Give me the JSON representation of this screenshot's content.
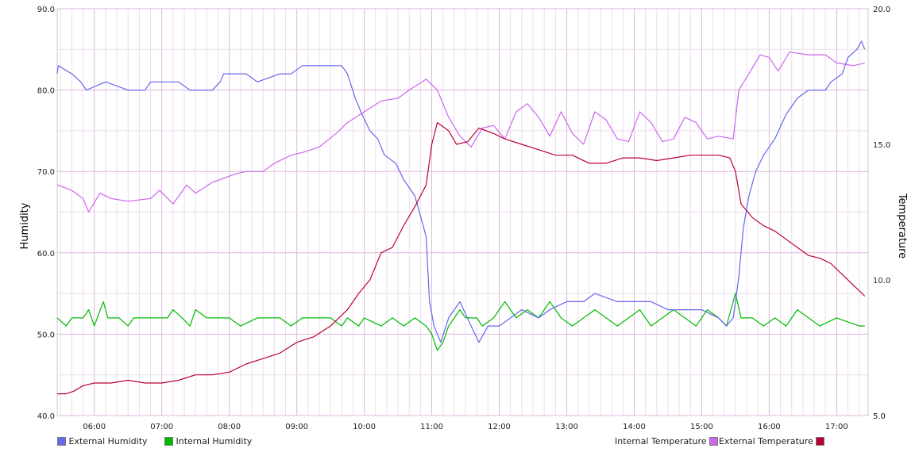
{
  "chart_data": {
    "type": "line",
    "title": "",
    "xlabel": "",
    "ylabel": "Humidity",
    "ylabel_right": "Temperature",
    "x_ticks": [
      "06:00",
      "07:00",
      "08:00",
      "09:00",
      "10:00",
      "11:00",
      "12:00",
      "13:00",
      "14:00",
      "15:00",
      "16:00",
      "17:00"
    ],
    "y_left_ticks": [
      "40.0",
      "50.0",
      "60.0",
      "70.0",
      "80.0",
      "90.0"
    ],
    "y_right_ticks": [
      "5.0",
      "10.0",
      "15.0",
      "20.0"
    ],
    "ylim_left": [
      40,
      90
    ],
    "ylim_right": [
      5,
      20
    ],
    "xlim": [
      "05:27",
      "17:28"
    ],
    "grid": true,
    "legend_position": "bottom",
    "series": [
      {
        "name": "External Humidity",
        "axis": "left",
        "color": "#6666ee",
        "points": [
          [
            "05:27",
            82
          ],
          [
            "05:28",
            83
          ],
          [
            "05:40",
            82
          ],
          [
            "05:48",
            81
          ],
          [
            "05:53",
            80
          ],
          [
            "06:10",
            81
          ],
          [
            "06:30",
            80
          ],
          [
            "06:45",
            80
          ],
          [
            "06:50",
            81
          ],
          [
            "07:15",
            81
          ],
          [
            "07:25",
            80
          ],
          [
            "07:45",
            80
          ],
          [
            "07:52",
            81
          ],
          [
            "07:55",
            82
          ],
          [
            "08:15",
            82
          ],
          [
            "08:25",
            81
          ],
          [
            "08:45",
            82
          ],
          [
            "08:55",
            82
          ],
          [
            "09:05",
            83
          ],
          [
            "09:40",
            83
          ],
          [
            "09:45",
            82
          ],
          [
            "09:52",
            79
          ],
          [
            "09:58",
            77
          ],
          [
            "10:05",
            75
          ],
          [
            "10:12",
            74
          ],
          [
            "10:18",
            72
          ],
          [
            "10:28",
            71
          ],
          [
            "10:35",
            69
          ],
          [
            "10:45",
            67
          ],
          [
            "10:55",
            62
          ],
          [
            "10:58",
            54
          ],
          [
            "11:02",
            51
          ],
          [
            "11:08",
            49
          ],
          [
            "11:15",
            52
          ],
          [
            "11:25",
            54
          ],
          [
            "11:35",
            51
          ],
          [
            "11:42",
            49
          ],
          [
            "11:50",
            51
          ],
          [
            "12:00",
            51
          ],
          [
            "12:10",
            52
          ],
          [
            "12:20",
            53
          ],
          [
            "12:35",
            52
          ],
          [
            "12:45",
            53
          ],
          [
            "13:00",
            54
          ],
          [
            "13:15",
            54
          ],
          [
            "13:25",
            55
          ],
          [
            "13:45",
            54
          ],
          [
            "14:00",
            54
          ],
          [
            "14:15",
            54
          ],
          [
            "14:30",
            53
          ],
          [
            "14:45",
            53
          ],
          [
            "15:00",
            53
          ],
          [
            "15:15",
            52
          ],
          [
            "15:22",
            51
          ],
          [
            "15:28",
            52
          ],
          [
            "15:33",
            57
          ],
          [
            "15:37",
            63
          ],
          [
            "15:42",
            67
          ],
          [
            "15:48",
            70
          ],
          [
            "15:55",
            72
          ],
          [
            "16:05",
            74
          ],
          [
            "16:15",
            77
          ],
          [
            "16:25",
            79
          ],
          [
            "16:35",
            80
          ],
          [
            "16:50",
            80
          ],
          [
            "16:55",
            81
          ],
          [
            "17:05",
            82
          ],
          [
            "17:10",
            84
          ],
          [
            "17:18",
            85
          ],
          [
            "17:22",
            86
          ],
          [
            "17:25",
            85
          ]
        ]
      },
      {
        "name": "Internal Humidity",
        "axis": "left",
        "color": "#00bb00",
        "points": [
          [
            "05:27",
            52
          ],
          [
            "05:35",
            51
          ],
          [
            "05:40",
            52
          ],
          [
            "05:50",
            52
          ],
          [
            "05:55",
            53
          ],
          [
            "06:00",
            51
          ],
          [
            "06:08",
            54
          ],
          [
            "06:12",
            52
          ],
          [
            "06:22",
            52
          ],
          [
            "06:30",
            51
          ],
          [
            "06:35",
            52
          ],
          [
            "07:05",
            52
          ],
          [
            "07:10",
            53
          ],
          [
            "07:18",
            52
          ],
          [
            "07:25",
            51
          ],
          [
            "07:30",
            53
          ],
          [
            "07:40",
            52
          ],
          [
            "08:00",
            52
          ],
          [
            "08:10",
            51
          ],
          [
            "08:25",
            52
          ],
          [
            "08:45",
            52
          ],
          [
            "08:55",
            51
          ],
          [
            "09:05",
            52
          ],
          [
            "09:30",
            52
          ],
          [
            "09:40",
            51
          ],
          [
            "09:45",
            52
          ],
          [
            "09:55",
            51
          ],
          [
            "10:00",
            52
          ],
          [
            "10:15",
            51
          ],
          [
            "10:25",
            52
          ],
          [
            "10:35",
            51
          ],
          [
            "10:45",
            52
          ],
          [
            "10:55",
            51
          ],
          [
            "11:00",
            50
          ],
          [
            "11:05",
            48
          ],
          [
            "11:10",
            49
          ],
          [
            "11:15",
            51
          ],
          [
            "11:25",
            53
          ],
          [
            "11:30",
            52
          ],
          [
            "11:40",
            52
          ],
          [
            "11:45",
            51
          ],
          [
            "11:55",
            52
          ],
          [
            "12:05",
            54
          ],
          [
            "12:15",
            52
          ],
          [
            "12:25",
            53
          ],
          [
            "12:35",
            52
          ],
          [
            "12:45",
            54
          ],
          [
            "12:55",
            52
          ],
          [
            "13:05",
            51
          ],
          [
            "13:15",
            52
          ],
          [
            "13:25",
            53
          ],
          [
            "13:35",
            52
          ],
          [
            "13:45",
            51
          ],
          [
            "13:55",
            52
          ],
          [
            "14:05",
            53
          ],
          [
            "14:15",
            51
          ],
          [
            "14:25",
            52
          ],
          [
            "14:35",
            53
          ],
          [
            "14:45",
            52
          ],
          [
            "14:55",
            51
          ],
          [
            "15:05",
            53
          ],
          [
            "15:15",
            52
          ],
          [
            "15:22",
            51
          ],
          [
            "15:30",
            55
          ],
          [
            "15:35",
            52
          ],
          [
            "15:45",
            52
          ],
          [
            "15:55",
            51
          ],
          [
            "16:05",
            52
          ],
          [
            "16:15",
            51
          ],
          [
            "16:25",
            53
          ],
          [
            "16:35",
            52
          ],
          [
            "16:45",
            51
          ],
          [
            "17:00",
            52
          ],
          [
            "17:20",
            51
          ],
          [
            "17:25",
            51
          ]
        ]
      },
      {
        "name": "Internal Temperature",
        "axis": "right",
        "color": "#cc66ee",
        "points": [
          [
            "05:27",
            13.5
          ],
          [
            "05:40",
            13.3
          ],
          [
            "05:50",
            13.0
          ],
          [
            "05:55",
            12.5
          ],
          [
            "06:05",
            13.2
          ],
          [
            "06:15",
            13.0
          ],
          [
            "06:30",
            12.9
          ],
          [
            "06:50",
            13.0
          ],
          [
            "06:58",
            13.3
          ],
          [
            "07:10",
            12.8
          ],
          [
            "07:22",
            13.5
          ],
          [
            "07:30",
            13.2
          ],
          [
            "07:45",
            13.6
          ],
          [
            "08:05",
            13.9
          ],
          [
            "08:15",
            14.0
          ],
          [
            "08:30",
            14.0
          ],
          [
            "08:40",
            14.3
          ],
          [
            "08:55",
            14.6
          ],
          [
            "09:05",
            14.7
          ],
          [
            "09:20",
            14.9
          ],
          [
            "09:35",
            15.4
          ],
          [
            "09:45",
            15.8
          ],
          [
            "10:00",
            16.2
          ],
          [
            "10:15",
            16.6
          ],
          [
            "10:30",
            16.7
          ],
          [
            "10:40",
            17.0
          ],
          [
            "10:55",
            17.4
          ],
          [
            "11:05",
            17.0
          ],
          [
            "11:15",
            16.0
          ],
          [
            "11:25",
            15.3
          ],
          [
            "11:35",
            14.9
          ],
          [
            "11:45",
            15.6
          ],
          [
            "11:55",
            15.7
          ],
          [
            "12:05",
            15.2
          ],
          [
            "12:15",
            16.2
          ],
          [
            "12:25",
            16.5
          ],
          [
            "12:35",
            16.0
          ],
          [
            "12:45",
            15.3
          ],
          [
            "12:55",
            16.2
          ],
          [
            "13:05",
            15.4
          ],
          [
            "13:15",
            15.0
          ],
          [
            "13:25",
            16.2
          ],
          [
            "13:35",
            15.9
          ],
          [
            "13:45",
            15.2
          ],
          [
            "13:55",
            15.1
          ],
          [
            "14:05",
            16.2
          ],
          [
            "14:15",
            15.8
          ],
          [
            "14:25",
            15.1
          ],
          [
            "14:35",
            15.2
          ],
          [
            "14:45",
            16.0
          ],
          [
            "14:55",
            15.8
          ],
          [
            "15:05",
            15.2
          ],
          [
            "15:15",
            15.3
          ],
          [
            "15:28",
            15.2
          ],
          [
            "15:33",
            17.0
          ],
          [
            "15:42",
            17.6
          ],
          [
            "15:52",
            18.3
          ],
          [
            "16:00",
            18.2
          ],
          [
            "16:08",
            17.7
          ],
          [
            "16:18",
            18.4
          ],
          [
            "16:35",
            18.3
          ],
          [
            "16:50",
            18.3
          ],
          [
            "17:00",
            18.0
          ],
          [
            "17:15",
            17.9
          ],
          [
            "17:25",
            18.0
          ]
        ]
      },
      {
        "name": "External Temperature",
        "axis": "right",
        "color": "#bb0033",
        "points": [
          [
            "05:27",
            5.8
          ],
          [
            "05:35",
            5.8
          ],
          [
            "05:42",
            5.9
          ],
          [
            "05:50",
            6.1
          ],
          [
            "06:00",
            6.2
          ],
          [
            "06:15",
            6.2
          ],
          [
            "06:30",
            6.3
          ],
          [
            "06:45",
            6.2
          ],
          [
            "07:00",
            6.2
          ],
          [
            "07:15",
            6.3
          ],
          [
            "07:30",
            6.5
          ],
          [
            "07:45",
            6.5
          ],
          [
            "08:00",
            6.6
          ],
          [
            "08:15",
            6.9
          ],
          [
            "08:30",
            7.1
          ],
          [
            "08:45",
            7.3
          ],
          [
            "09:00",
            7.7
          ],
          [
            "09:15",
            7.9
          ],
          [
            "09:30",
            8.3
          ],
          [
            "09:45",
            8.9
          ],
          [
            "09:55",
            9.5
          ],
          [
            "10:05",
            10.0
          ],
          [
            "10:15",
            11.0
          ],
          [
            "10:25",
            11.2
          ],
          [
            "10:35",
            12.0
          ],
          [
            "10:45",
            12.7
          ],
          [
            "10:55",
            13.5
          ],
          [
            "11:00",
            15.0
          ],
          [
            "11:05",
            15.8
          ],
          [
            "11:15",
            15.5
          ],
          [
            "11:22",
            15.0
          ],
          [
            "11:32",
            15.1
          ],
          [
            "11:42",
            15.6
          ],
          [
            "11:55",
            15.4
          ],
          [
            "12:05",
            15.2
          ],
          [
            "12:20",
            15.0
          ],
          [
            "12:35",
            14.8
          ],
          [
            "12:50",
            14.6
          ],
          [
            "13:05",
            14.6
          ],
          [
            "13:20",
            14.3
          ],
          [
            "13:35",
            14.3
          ],
          [
            "13:50",
            14.5
          ],
          [
            "14:05",
            14.5
          ],
          [
            "14:20",
            14.4
          ],
          [
            "14:35",
            14.5
          ],
          [
            "14:50",
            14.6
          ],
          [
            "15:05",
            14.6
          ],
          [
            "15:15",
            14.6
          ],
          [
            "15:25",
            14.5
          ],
          [
            "15:30",
            14.0
          ],
          [
            "15:35",
            12.8
          ],
          [
            "15:45",
            12.3
          ],
          [
            "15:55",
            12.0
          ],
          [
            "16:05",
            11.8
          ],
          [
            "16:15",
            11.5
          ],
          [
            "16:25",
            11.2
          ],
          [
            "16:35",
            10.9
          ],
          [
            "16:45",
            10.8
          ],
          [
            "16:55",
            10.6
          ],
          [
            "17:05",
            10.2
          ],
          [
            "17:15",
            9.8
          ],
          [
            "17:25",
            9.4
          ]
        ]
      }
    ]
  },
  "legend": {
    "left": [
      {
        "label": "External Humidity",
        "color": "#6666ee"
      },
      {
        "label": "Internal Humidity",
        "color": "#00bb00"
      }
    ],
    "right": [
      {
        "label": "Internal Temperature",
        "color": "#cc66ee"
      },
      {
        "label": "External Temperature",
        "color": "#bb0033"
      }
    ]
  }
}
